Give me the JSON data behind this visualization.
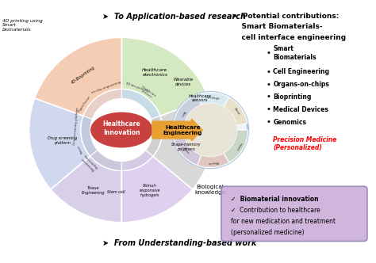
{
  "title_top": "➤  To Application-based research",
  "title_bottom": "➤  From Understanding-based work",
  "right_title_line1": "➤  Potential contributions:",
  "right_title_line2": "    Smart Biomaterials-",
  "right_title_line3": "    cell interface engineering",
  "precision_medicine_line1": "Precision Medicine",
  "precision_medicine_line2": "(Personalized)",
  "bio_knowledge": "Biological\nknowledge",
  "box_text_line1": "✓  Biomaterial innovation",
  "box_text_line2": "✓  Contribution to healthcare",
  "box_text_line3": "for new medication and treatment",
  "box_text_line4": "(personalized medicine)",
  "center_label": "Healthcare\nInnovation",
  "right_label": "Healthcare\nEngineering",
  "bg_color": "#ffffff",
  "sector_colors": {
    "top_right": "#d4e8c2",
    "top_left": "#f5cdb4",
    "left": "#d0d8f0",
    "bottom_left": "#d8d0e8",
    "bottom": "#e0d0f0",
    "bottom_right": "#d8d8d8"
  },
  "center_color": "#c84040",
  "box_bg": "#c8a8d8",
  "arrow_color": "#e8a030"
}
